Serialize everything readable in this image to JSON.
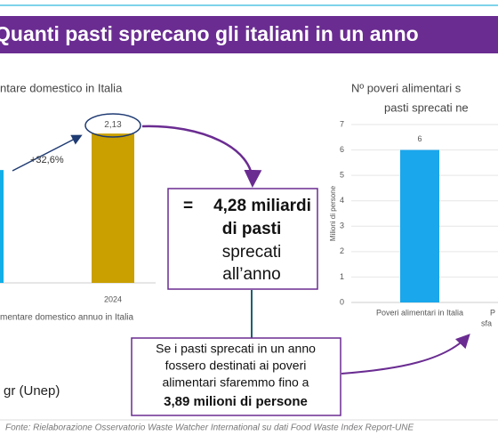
{
  "header": {
    "title": "Quanti pasti sprecano gli italiani in un anno"
  },
  "chart_data": [
    {
      "type": "bar",
      "title": "ntare domestico in Italia",
      "x_label": "mentare domestico annuo in Italia",
      "categories": [
        null,
        "2024"
      ],
      "values": [
        1.61,
        2.13
      ],
      "value_labels": [
        null,
        "2,13"
      ],
      "colors": [
        "#12aee8",
        "#c9a000"
      ],
      "ylim": [
        0,
        2.5
      ],
      "annotation": "+32,6%"
    },
    {
      "type": "bar",
      "title_lines": [
        "Nº poveri alimentari s",
        "pasti sprecati ne"
      ],
      "y_label": "Milioni di persone",
      "categories": [
        [
          "Poveri alimentari in Italia"
        ],
        [
          "P",
          "sfa"
        ]
      ],
      "values": [
        6,
        null
      ],
      "value_labels": [
        "6",
        null
      ],
      "colors": [
        "#1aa7ec",
        "#1aa7ec"
      ],
      "ylim": [
        0,
        7
      ],
      "yticks": [
        0,
        1,
        2,
        3,
        4,
        5,
        6,
        7
      ],
      "grid": true
    }
  ],
  "callout_1": {
    "prefix": "=",
    "bold_lines": [
      "4,28 miliardi",
      "di pasti"
    ],
    "lines": [
      "sprecati",
      "all’anno"
    ]
  },
  "callout_2": {
    "lines": [
      "Se i pasti sprecati in un anno",
      "fossero destinati ai poveri",
      "alimentari sfaremmo fino a"
    ],
    "bold": "3,89 milioni di persone"
  },
  "note": "gr (Unep)",
  "footer": "Fonte: Rielaborazione Osservatorio Waste Watcher International su dati Food Waste Index Report-UNE"
}
